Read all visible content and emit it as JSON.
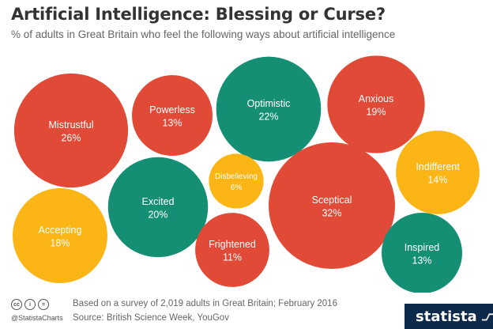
{
  "header": {
    "title": "Artificial Intelligence: Blessing or Curse?",
    "subtitle": "% of adults in Great Britain who feel the following ways about artificial intelligence"
  },
  "colors": {
    "red": "#e14a36",
    "green": "#148f73",
    "yellow": "#fbb515"
  },
  "chart_data": {
    "type": "bubble",
    "unit": "%",
    "bubbles": [
      {
        "label": "Mistrustful",
        "value": 26,
        "value_label": "26%",
        "color": "red"
      },
      {
        "label": "Powerless",
        "value": 13,
        "value_label": "13%",
        "color": "red"
      },
      {
        "label": "Optimistic",
        "value": 22,
        "value_label": "22%",
        "color": "green"
      },
      {
        "label": "Anxious",
        "value": 19,
        "value_label": "19%",
        "color": "red"
      },
      {
        "label": "Indifferent",
        "value": 14,
        "value_label": "14%",
        "color": "yellow"
      },
      {
        "label": "Disbelieving",
        "value": 6,
        "value_label": "6%",
        "color": "yellow"
      },
      {
        "label": "Excited",
        "value": 20,
        "value_label": "20%",
        "color": "green"
      },
      {
        "label": "Sceptical",
        "value": 32,
        "value_label": "32%",
        "color": "red"
      },
      {
        "label": "Accepting",
        "value": 18,
        "value_label": "18%",
        "color": "yellow"
      },
      {
        "label": "Frightened",
        "value": 11,
        "value_label": "11%",
        "color": "red"
      },
      {
        "label": "Inspired",
        "value": 13,
        "value_label": "13%",
        "color": "green"
      }
    ]
  },
  "footer": {
    "handle": "@StatistaCharts",
    "note": "Based on a survey of 2,019 adults in Great Britain; February 2016",
    "source": "Source: British Science Week, YouGov",
    "brand": "statista",
    "icons": [
      "cc-icon",
      "person-icon",
      "equals-icon"
    ]
  }
}
